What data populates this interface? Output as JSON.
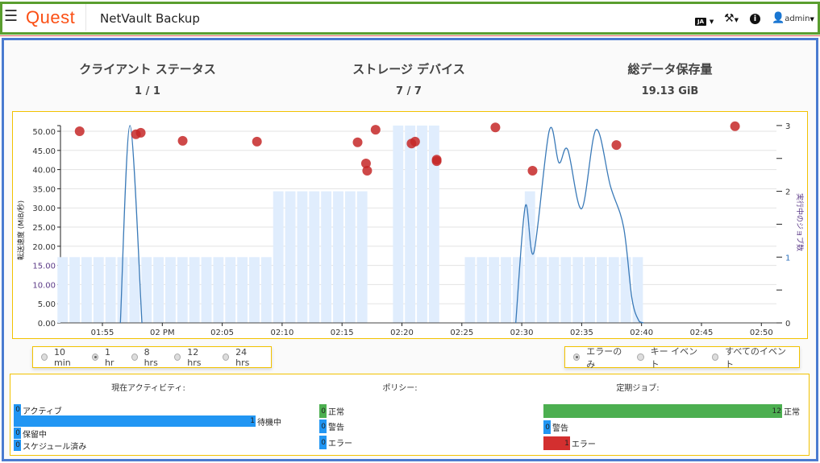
{
  "header": {
    "logo": "Quest",
    "title": "NetVault Backup",
    "lang": "JA",
    "user": "admin"
  },
  "stats": [
    {
      "title": "クライアント ステータス",
      "value": "1 / 1"
    },
    {
      "title": "ストレージ デバイス",
      "value": "7 / 7"
    },
    {
      "title": "総データ保存量",
      "value": "19.13 GiB"
    }
  ],
  "time_ranges": [
    {
      "label": "10 min",
      "selected": false
    },
    {
      "label": "1 hr",
      "selected": true
    },
    {
      "label": "8 hrs",
      "selected": false
    },
    {
      "label": "12 hrs",
      "selected": false
    },
    {
      "label": "24 hrs",
      "selected": false
    }
  ],
  "event_filters": [
    {
      "label": "エラーのみ",
      "selected": true
    },
    {
      "label": "キー イベント",
      "selected": false
    },
    {
      "label": "すべてのイベント",
      "selected": false
    }
  ],
  "chart_data": {
    "type": "line",
    "ylabel": "転送速度 (MiB/秒)",
    "y2label": "実行中のジョブ数",
    "ylim": [
      0,
      51.5
    ],
    "y2lim": [
      0,
      3
    ],
    "yticks": [
      "0.00",
      "5.00",
      "10.00",
      "15.00",
      "20.00",
      "25.00",
      "30.00",
      "35.00",
      "40.00",
      "45.00",
      "50.00"
    ],
    "y2ticks": [
      "0",
      "1",
      "2",
      "3"
    ],
    "xticks": [
      {
        "t": "01:55",
        "label": "01:55"
      },
      {
        "t": "02:00",
        "label": "02 PM"
      },
      {
        "t": "02:05",
        "label": "02:05"
      },
      {
        "t": "02:10",
        "label": "02:10"
      },
      {
        "t": "02:15",
        "label": "02:15"
      },
      {
        "t": "02:20",
        "label": "02:20"
      },
      {
        "t": "02:25",
        "label": "02:25"
      },
      {
        "t": "02:30",
        "label": "02:30"
      },
      {
        "t": "02:35",
        "label": "02:35"
      },
      {
        "t": "02:40",
        "label": "02:40"
      },
      {
        "t": "02:45",
        "label": "02:45"
      },
      {
        "t": "02:50",
        "label": "02:50"
      }
    ],
    "grid": true,
    "jobs_bars": {
      "start": "01:51:15",
      "interval_min": 1,
      "counts": [
        1,
        1,
        1,
        1,
        1,
        1,
        1,
        1,
        1,
        1,
        1,
        1,
        1,
        1,
        1,
        1,
        1,
        1,
        2,
        2,
        2,
        2,
        2,
        2,
        2,
        2,
        0,
        0,
        3,
        3,
        3,
        3,
        0,
        0,
        1,
        1,
        1,
        1,
        1,
        2,
        1,
        1,
        1,
        1,
        1,
        1,
        1,
        1,
        1,
        0,
        0,
        0,
        0,
        0,
        0,
        0,
        0,
        0,
        0,
        0
      ]
    },
    "transfer_rate": [
      [
        [
          "01:56:30",
          0
        ],
        [
          "01:57:18",
          51.5
        ],
        [
          "01:58:18",
          0
        ]
      ],
      [
        [
          "02:29:30",
          0
        ],
        [
          "02:30:18",
          30.5
        ],
        [
          "02:31:00",
          18.3
        ],
        [
          "02:32:18",
          50.2
        ],
        [
          "02:33:06",
          41.8
        ],
        [
          "02:33:50",
          45.2
        ],
        [
          "02:35:00",
          29.8
        ],
        [
          "02:36:12",
          50.4
        ],
        [
          "02:37:24",
          35.7
        ],
        [
          "02:38:30",
          25
        ],
        [
          "02:39:12",
          6.3
        ],
        [
          "02:39:48",
          0.4
        ],
        [
          "02:40:10",
          0
        ]
      ]
    ],
    "error_events": [
      [
        "01:53:06",
        50.0
      ],
      [
        "01:57:48",
        49.2
      ],
      [
        "01:58:12",
        49.6
      ],
      [
        "02:01:42",
        47.5
      ],
      [
        "02:07:54",
        47.3
      ],
      [
        "02:16:18",
        47.1
      ],
      [
        "02:17:00",
        41.6
      ],
      [
        "02:17:06",
        39.7
      ],
      [
        "02:17:48",
        50.4
      ],
      [
        "02:20:48",
        46.8
      ],
      [
        "02:21:06",
        47.3
      ],
      [
        "02:22:54",
        42.6
      ],
      [
        "02:22:54",
        42.2
      ],
      [
        "02:27:48",
        51.0
      ],
      [
        "02:30:54",
        39.7
      ],
      [
        "02:37:54",
        46.4
      ],
      [
        "02:47:48",
        51.3
      ]
    ]
  },
  "activity": {
    "title": "現在アクティビティ:",
    "max": 1,
    "items": [
      {
        "label": "アクティブ",
        "value": 0
      },
      {
        "label": "待機中",
        "value": 1
      },
      {
        "label": "保留中",
        "value": 0
      },
      {
        "label": "スケジュール済み",
        "value": 0
      }
    ]
  },
  "policy": {
    "title": "ポリシー:",
    "items": [
      {
        "label": "正常",
        "value": 0,
        "color": "#4caf50"
      },
      {
        "label": "警告",
        "value": 0,
        "color": "#2196f3"
      },
      {
        "label": "エラー",
        "value": 0,
        "color": "#2196f3"
      }
    ]
  },
  "jobs": {
    "title": "定期ジョブ:",
    "max": 12,
    "items": [
      {
        "label": "正常",
        "value": 12,
        "color": "#4caf50"
      },
      {
        "label": "警告",
        "value": 0,
        "color": "#2196f3"
      },
      {
        "label": "エラー",
        "value": 1,
        "color": "#d32f2f"
      }
    ]
  },
  "colors": {
    "accent": "#fb4f14",
    "bar": "#2196f3",
    "rate_line": "#3a7ab8",
    "event": "#c62828",
    "job_bar": "#e0edfd"
  }
}
